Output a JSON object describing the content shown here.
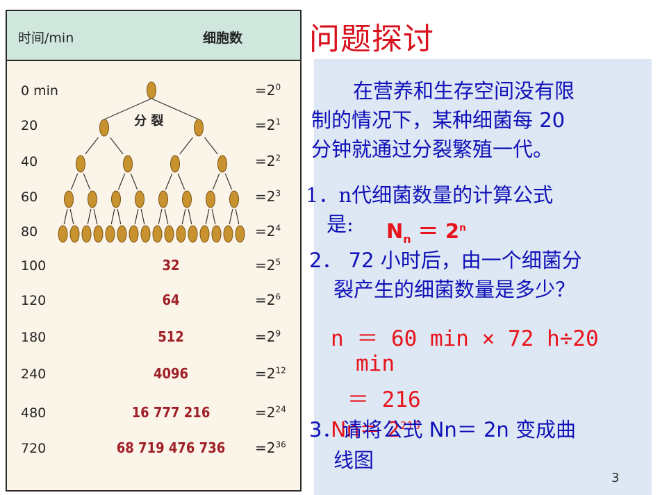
{
  "table": {
    "header_time": "时间/min",
    "header_cells": "细胞数",
    "split_label": "分 裂",
    "rows": [
      {
        "time": "0 min",
        "count": "",
        "base": "=2",
        "exp": "0"
      },
      {
        "time": "20",
        "count": "",
        "base": "=2",
        "exp": "1"
      },
      {
        "time": "40",
        "count": "",
        "base": "=2",
        "exp": "2"
      },
      {
        "time": "60",
        "count": "",
        "base": "=2",
        "exp": "3"
      },
      {
        "time": "80",
        "count": "",
        "base": "=2",
        "exp": "4"
      },
      {
        "time": "100",
        "count": "32",
        "base": "=2",
        "exp": "5"
      },
      {
        "time": "120",
        "count": "64",
        "base": "=2",
        "exp": "6"
      },
      {
        "time": "180",
        "count": "512",
        "base": "=2",
        "exp": "9"
      },
      {
        "time": "240",
        "count": "4096",
        "base": "=2",
        "exp": "12"
      },
      {
        "time": "480",
        "count": "16 777 216",
        "base": "=2",
        "exp": "24"
      },
      {
        "time": "720",
        "count": "68 719 476 736",
        "base": "=2",
        "exp": "36"
      }
    ]
  },
  "title": "问题探讨",
  "intro_line1": "在营养和生存空间没有限",
  "intro_line2": "制的情况下，某种细菌每 20",
  "intro_line3": "分钟就通过分裂繁殖一代。",
  "q1_line1": "1．n代细菌数量的计算公式",
  "q1_line2": "是:",
  "q1_formula_N": "N",
  "q1_formula_sub": "n",
  "q1_formula_rest": " ＝ 2",
  "q1_formula_sup": "n",
  "q2_line1": "2． 72 小时后，由一个细菌分",
  "q2_line2": "裂产生的细菌数量是多少？",
  "calc_line1": "n ＝ 60 min × 72 h÷20",
  "calc_line2": "min",
  "calc_line3": "＝ 216",
  "calc_line4_red": "Nn＝ 2",
  "calc_line4_sup": "216",
  "q3_text": "3．请将公式 Nn＝ 2n 变成曲",
  "q3_line2": "线图",
  "page_number": "3",
  "colors": {
    "title": "#d8111c",
    "blue_text": "#1010b8",
    "red_text": "#e8141c",
    "header_bg": "#cfe7dd",
    "table_bg": "#fbf4e9",
    "panel_bg": "#dde8f4",
    "cell": "#c8922e"
  }
}
